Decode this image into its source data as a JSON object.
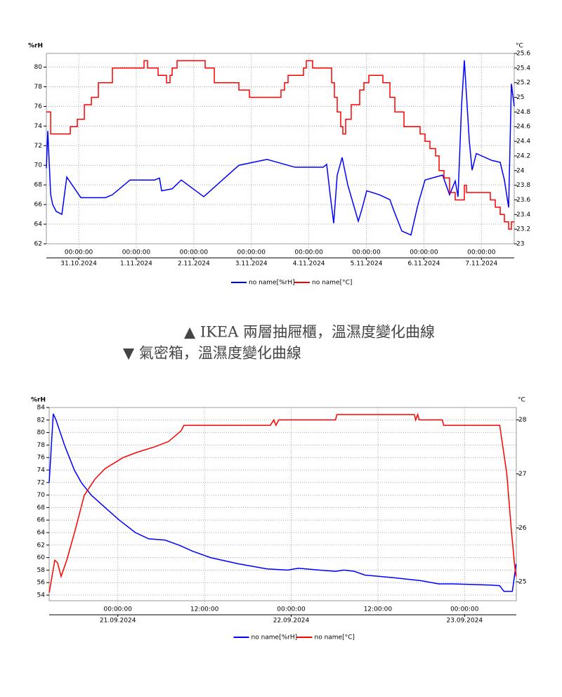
{
  "captions": [
    "▲ IKEA 兩層抽屜櫃，溫濕度變化曲線",
    "▼ 氣密箱，溫濕度變化曲線"
  ],
  "chart_data": [
    {
      "type": "line",
      "ylabel": "%rH",
      "y2label": "°C",
      "grid": true,
      "legend": "bottom",
      "xlim": [
        "30.10.2024 10:30",
        "7.11.2024 13:41"
      ],
      "ylim": [
        62,
        81.4
      ],
      "yticks": [
        62,
        64,
        66,
        68,
        70,
        72,
        74,
        76,
        78,
        80
      ],
      "y2lim": [
        23,
        25.6
      ],
      "y2ticks": [
        23,
        23.2,
        23.4,
        23.6,
        23.8,
        24,
        24.2,
        24.4,
        24.6,
        24.8,
        25,
        25.2,
        25.4,
        25.6
      ],
      "xticks": [
        {
          "value": "31.10.2024 00:00",
          "label": "00:00:00"
        },
        {
          "value": "1.11.2024 00:00",
          "label": "00:00:00"
        },
        {
          "value": "2.11.2024 00:00",
          "label": "00:00:00"
        },
        {
          "value": "3.11.2024 00:00",
          "label": "00:00:00"
        },
        {
          "value": "4.11.2024 00:00",
          "label": "00:00:00"
        },
        {
          "value": "5.11.2024 00:00",
          "label": "00:00:00"
        },
        {
          "value": "6.11.2024 00:00",
          "label": "00:00:00"
        },
        {
          "value": "7.11.2024 00:00",
          "label": "00:00:00"
        }
      ],
      "xdates": [
        {
          "value": "31.10.2024 00:00",
          "label": "31.10.2024"
        },
        {
          "value": "1.11.2024 00:00",
          "label": "1.11.2024"
        },
        {
          "value": "2.11.2024 00:00",
          "label": "2.11.2024"
        },
        {
          "value": "3.11.2024 00:00",
          "label": "3.11.2024"
        },
        {
          "value": "4.11.2024 00:00",
          "label": "4.11.2024"
        },
        {
          "value": "5.11.2024 00:00",
          "label": "5.11.2024"
        },
        {
          "value": "6.11.2024 00:00",
          "label": "6.11.2024"
        },
        {
          "value": "7.11.2024 00:00",
          "label": "7.11.2024"
        }
      ],
      "series": [
        {
          "name": "no name[%rH]",
          "color": "#0000ff",
          "axis": "y",
          "x": [
            "30.10.2024 10:30",
            "30.10.2024 11:06",
            "30.10.2024 12:18",
            "30.10.2024 13:09",
            "30.10.2024 14:37",
            "30.10.2024 16:58",
            "30.10.2024 19:01",
            "31.10.2024 00:53",
            "31.10.2024 11:08",
            "31.10.2024 14:04",
            "31.10.2024 21:23",
            "1.11.2024 07:39",
            "1.11.2024 09:42",
            "1.11.2024 10:35",
            "1.11.2024 14:58",
            "1.11.2024 18:47",
            "2.11.2024 04:09",
            "2.11.2024 18:49",
            "3.11.2024 06:32",
            "3.11.2024 18:15",
            "4.11.2024 05:59",
            "4.11.2024 07:26",
            "4.11.2024 08:54",
            "4.11.2024 10:22",
            "4.11.2024 11:50",
            "4.11.2024 13:53",
            "4.11.2024 16:14",
            "4.11.2024 20:38",
            "4.11.2024 22:06",
            "5.11.2024 00:09",
            "5.11.2024 05:25",
            "5.11.2024 09:49",
            "5.11.2024 11:17",
            "5.11.2024 14:48",
            "5.11.2024 18:36",
            "5.11.2024 21:32",
            "6.11.2024 00:28",
            "6.11.2024 04:52",
            "6.11.2024 07:48",
            "6.11.2024 10:43",
            "6.11.2024 13:04",
            "6.11.2024 14:14",
            "6.11.2024 15:42",
            "6.11.2024 16:52",
            "6.11.2024 18:56",
            "6.11.2024 20:06",
            "6.11.2024 21:52",
            "7.11.2024 04:19",
            "7.11.2024 07:50",
            "7.11.2024 09:35",
            "7.11.2024 11:21",
            "7.11.2024 12:30",
            "7.11.2024 13:41"
          ],
          "values": [
            69.7,
            73.5,
            67,
            66,
            65.3,
            65,
            68.8,
            66.7,
            66.7,
            67,
            68.5,
            68.5,
            68.7,
            67.4,
            67.6,
            68.5,
            66.8,
            70,
            70.6,
            69.8,
            69.8,
            70.1,
            67,
            64.1,
            69,
            70.8,
            68,
            64.3,
            65.5,
            67.4,
            67,
            66.5,
            65.5,
            63.3,
            62.9,
            66,
            68.5,
            68.8,
            69,
            67,
            68.4,
            66.8,
            76,
            80.7,
            72.5,
            69.5,
            71.2,
            70.5,
            70.3,
            68.5,
            65.7,
            78.3,
            76
          ]
        },
        {
          "name": "no name[°C]",
          "color": "#ff0000",
          "axis": "y2",
          "step": true,
          "x": [
            "30.10.2024 10:30",
            "30.10.2024 12:18",
            "30.10.2024 20:29",
            "30.10.2024 23:25",
            "31.10.2024 02:21",
            "31.10.2024 05:17",
            "31.10.2024 08:12",
            "31.10.2024 14:04",
            "1.11.2024 03:15",
            "1.11.2024 04:43",
            "1.11.2024 09:07",
            "1.11.2024 12:38",
            "1.11.2024 14:05",
            "1.11.2024 14:58",
            "1.11.2024 17:01",
            "2.11.2024 04:45",
            "2.11.2024 08:34",
            "2.11.2024 18:49",
            "2.11.2024 23:13",
            "3.11.2024 12:23",
            "3.11.2024 13:52",
            "3.11.2024 15:20",
            "3.11.2024 21:46",
            "3.11.2024 22:57",
            "4.11.2024 01:35",
            "4.11.2024 09:30",
            "4.11.2024 10:40",
            "4.11.2024 11:50",
            "4.11.2024 13:18",
            "4.11.2024 14:11",
            "4.11.2024 15:22",
            "4.11.2024 17:41",
            "4.11.2024 21:13",
            "4.11.2024 22:58",
            "5.11.2024 01:02",
            "5.11.2024 06:53",
            "5.11.2024 09:49",
            "5.11.2024 11:53",
            "5.11.2024 15:41",
            "5.11.2024 22:25",
            "6.11.2024 00:28",
            "6.11.2024 02:31",
            "6.11.2024 04:52",
            "6.11.2024 06:20",
            "6.11.2024 08:23",
            "6.11.2024 10:43",
            "6.11.2024 13:04",
            "6.11.2024 16:52",
            "6.11.2024 17:45",
            "7.11.2024 03:43",
            "7.11.2024 05:47",
            "7.11.2024 07:50",
            "7.11.2024 09:35",
            "7.11.2024 11:21",
            "7.11.2024 12:30",
            "7.11.2024 13:41"
          ],
          "values": [
            24.8,
            24.5,
            24.6,
            24.7,
            24.9,
            25.0,
            25.2,
            25.4,
            25.5,
            25.4,
            25.3,
            25.2,
            25.3,
            25.4,
            25.5,
            25.4,
            25.2,
            25.1,
            25.0,
            25.1,
            25.2,
            25.3,
            25.4,
            25.5,
            25.4,
            25.2,
            25.0,
            24.8,
            24.6,
            24.5,
            24.7,
            24.9,
            25.1,
            25.2,
            25.3,
            25.2,
            25.0,
            24.8,
            24.6,
            24.5,
            24.4,
            24.3,
            24.2,
            24.0,
            23.9,
            23.7,
            23.6,
            23.8,
            23.7,
            23.6,
            23.5,
            23.4,
            23.3,
            23.2,
            23.3,
            23.3
          ]
        }
      ]
    },
    {
      "type": "line",
      "ylabel": "%rH",
      "y2label": "°C",
      "grid": true,
      "legend": "bottom",
      "xlim": [
        "20.09.2024 14:30",
        "23.09.2024 07:10"
      ],
      "ylim": [
        53.1,
        84
      ],
      "yticks": [
        54,
        56,
        58,
        60,
        62,
        64,
        66,
        68,
        70,
        72,
        74,
        76,
        78,
        80,
        82,
        84
      ],
      "y2lim": [
        24.65,
        28.23
      ],
      "y2ticks": [
        25,
        26,
        27,
        28
      ],
      "xticks": [
        {
          "value": "21.09.2024 00:00",
          "label": "00:00:00"
        },
        {
          "value": "21.09.2024 12:00",
          "label": "12:00:00"
        },
        {
          "value": "22.09.2024 00:00",
          "label": "00:00:00"
        },
        {
          "value": "22.09.2024 12:00",
          "label": "12:00:00"
        },
        {
          "value": "23.09.2024 00:00",
          "label": "00:00:00"
        }
      ],
      "xdates": [
        {
          "value": "21.09.2024 00:00",
          "label": "21.09.2024"
        },
        {
          "value": "22.09.2024 00:00",
          "label": "22.09.2024"
        },
        {
          "value": "23.09.2024 00:00",
          "label": "23.09.2024"
        }
      ],
      "series": [
        {
          "name": "no name[%rH]",
          "color": "#0000ff",
          "axis": "y",
          "x": [
            "20.09.2024 14:30",
            "20.09.2024 15:04",
            "20.09.2024 15:27",
            "20.09.2024 16:37",
            "20.09.2024 17:59",
            "20.09.2024 18:57",
            "20.09.2024 20:19",
            "20.09.2024 22:15",
            "21.09.2024 00:12",
            "21.09.2024 02:26",
            "21.09.2024 04:17",
            "21.09.2024 06:31",
            "21.09.2024 08:28",
            "21.09.2024 10:24",
            "21.09.2024 12:50",
            "21.09.2024 16:43",
            "21.09.2024 20:37",
            "21.09.2024 23:31",
            "22.09.2024 00:59",
            "22.09.2024 03:54",
            "22.09.2024 06:08",
            "22.09.2024 07:18",
            "22.09.2024 08:45",
            "22.09.2024 10:13",
            "22.09.2024 14:06",
            "22.09.2024 18:00",
            "22.09.2024 20:25",
            "22.09.2024 22:22",
            "23.09.2024 03:42",
            "23.09.2024 04:52",
            "23.09.2024 05:27",
            "23.09.2024 06:37",
            "23.09.2024 07:08"
          ],
          "values": [
            72,
            83,
            82,
            78,
            74,
            72,
            70,
            68,
            66,
            64,
            63,
            62.8,
            62,
            61,
            60,
            59,
            58.2,
            58,
            58.3,
            58,
            57.8,
            58,
            57.8,
            57.2,
            56.8,
            56.3,
            55.8,
            55.8,
            55.6,
            55.5,
            54.6,
            54.6,
            59
          ]
        },
        {
          "name": "no name[°C]",
          "color": "#ff0000",
          "axis": "y2",
          "x": [
            "20.09.2024 14:30",
            "20.09.2024 15:17",
            "20.09.2024 15:40",
            "20.09.2024 16:09",
            "20.09.2024 16:56",
            "20.09.2024 18:11",
            "20.09.2024 19:21",
            "20.09.2024 20:49",
            "20.09.2024 22:15",
            "21.09.2024 00:42",
            "21.09.2024 02:39",
            "21.09.2024 05:04",
            "21.09.2024 07:01",
            "21.09.2024 08:46",
            "21.09.2024 09:09",
            "21.09.2024 21:06",
            "21.09.2024 21:36",
            "21.09.2024 21:53",
            "21.09.2024 22:17",
            "22.09.2024 06:08",
            "22.09.2024 06:20",
            "22.09.2024 17:02",
            "22.09.2024 17:14",
            "22.09.2024 17:31",
            "22.09.2024 17:43",
            "22.09.2024 20:55",
            "22.09.2024 21:07",
            "23.09.2024 04:52",
            "23.09.2024 05:51",
            "23.09.2024 06:27",
            "23.09.2024 06:56",
            "23.09.2024 07:08"
          ],
          "values": [
            24.8,
            25.4,
            25.35,
            25.1,
            25.4,
            26.0,
            26.6,
            26.9,
            27.1,
            27.3,
            27.4,
            27.5,
            27.6,
            27.8,
            27.9,
            27.9,
            28.0,
            27.9,
            28.0,
            28.0,
            28.1,
            28.1,
            28.0,
            28.1,
            28.0,
            28.0,
            27.9,
            27.9,
            27.0,
            26.0,
            25.3,
            25.1
          ]
        }
      ]
    }
  ]
}
